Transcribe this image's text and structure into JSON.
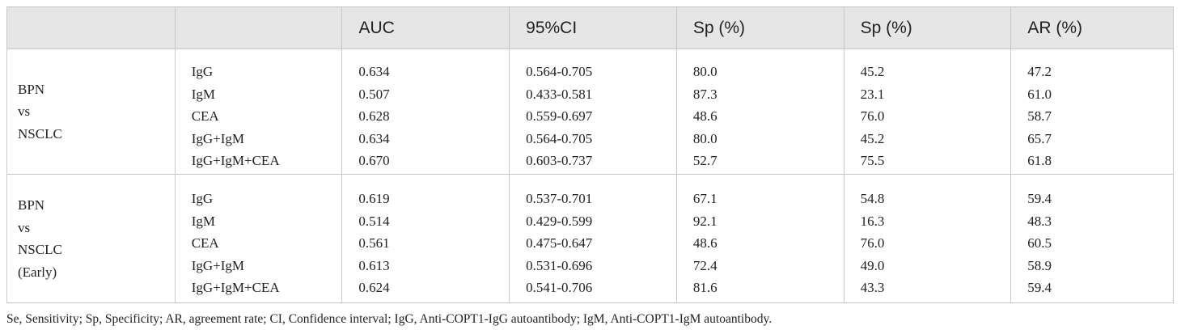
{
  "table": {
    "headers": [
      "",
      "",
      "AUC",
      "95%CI",
      "Sp (%)",
      "Sp (%)",
      "AR (%)"
    ],
    "groups": [
      {
        "label_lines": [
          "BPN",
          "vs",
          "NSCLC"
        ],
        "rows": [
          {
            "marker": "IgG",
            "auc": "0.634",
            "ci": "0.564-0.705",
            "sp1": "80.0",
            "sp2": "45.2",
            "ar": "47.2"
          },
          {
            "marker": "IgM",
            "auc": "0.507",
            "ci": "0.433-0.581",
            "sp1": "87.3",
            "sp2": "23.1",
            "ar": "61.0"
          },
          {
            "marker": "CEA",
            "auc": "0.628",
            "ci": "0.559-0.697",
            "sp1": "48.6",
            "sp2": "76.0",
            "ar": "58.7"
          },
          {
            "marker": "IgG+IgM",
            "auc": "0.634",
            "ci": "0.564-0.705",
            "sp1": "80.0",
            "sp2": "45.2",
            "ar": "65.7"
          },
          {
            "marker": "IgG+IgM+CEA",
            "auc": "0.670",
            "ci": "0.603-0.737",
            "sp1": "52.7",
            "sp2": "75.5",
            "ar": "61.8"
          }
        ]
      },
      {
        "label_lines": [
          "BPN",
          "vs",
          "NSCLC",
          "(Early)"
        ],
        "rows": [
          {
            "marker": "IgG",
            "auc": "0.619",
            "ci": "0.537-0.701",
            "sp1": "67.1",
            "sp2": "54.8",
            "ar": "59.4"
          },
          {
            "marker": "IgM",
            "auc": "0.514",
            "ci": "0.429-0.599",
            "sp1": "92.1",
            "sp2": "16.3",
            "ar": "48.3"
          },
          {
            "marker": "CEA",
            "auc": "0.561",
            "ci": "0.475-0.647",
            "sp1": "48.6",
            "sp2": "76.0",
            "ar": "60.5"
          },
          {
            "marker": "IgG+IgM",
            "auc": "0.613",
            "ci": "0.531-0.696",
            "sp1": "72.4",
            "sp2": "49.0",
            "ar": "58.9"
          },
          {
            "marker": "IgG+IgM+CEA",
            "auc": "0.624",
            "ci": "0.541-0.706",
            "sp1": "81.6",
            "sp2": "43.3",
            "ar": "59.4"
          }
        ]
      }
    ]
  },
  "footnote": "Se, Sensitivity; Sp, Specificity; AR, agreement rate; CI, Confidence interval; IgG, Anti-COPT1-IgG autoantibody; IgM, Anti-COPT1-IgM autoantibody."
}
